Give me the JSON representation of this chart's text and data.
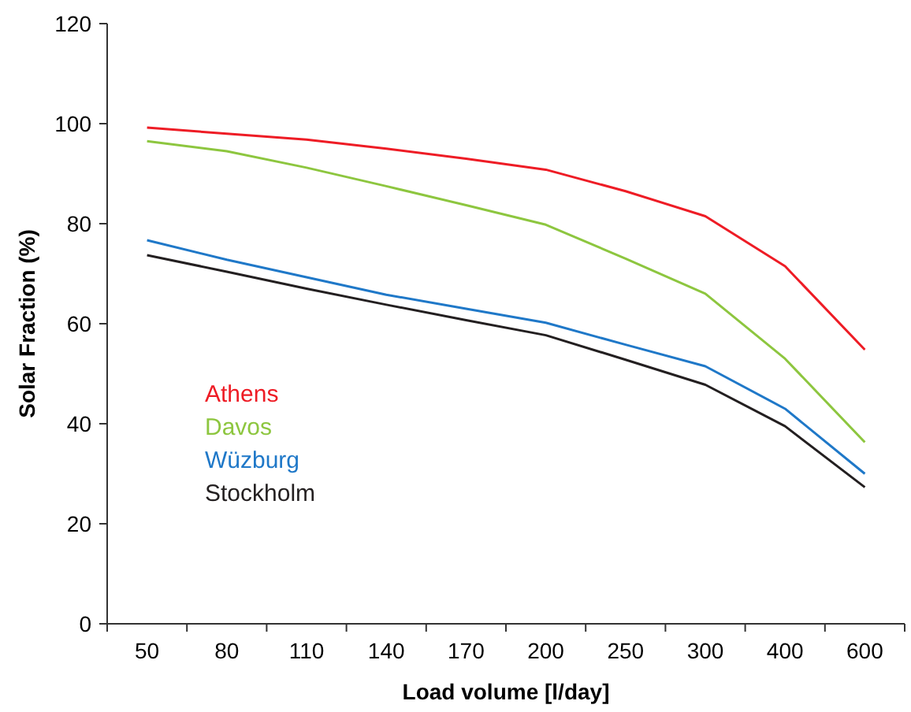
{
  "chart_data": {
    "type": "line",
    "xlabel": "Load volume [l/day]",
    "ylabel": "Solar Fraction (%)",
    "categories": [
      "50",
      "80",
      "110",
      "140",
      "170",
      "200",
      "250",
      "300",
      "400",
      "600"
    ],
    "series": [
      {
        "name": "Athens",
        "color": "#ee1c25",
        "values": [
          99.2,
          98,
          96.8,
          95,
          93,
          90.8,
          86.5,
          81.5,
          71.5,
          54.8
        ]
      },
      {
        "name": "Davos",
        "color": "#8dc63f",
        "values": [
          96.5,
          94.5,
          91.2,
          87.5,
          83.7,
          79.8,
          73,
          66,
          53,
          36.3
        ]
      },
      {
        "name": "Wüzburg",
        "color": "#1f78c8",
        "values": [
          76.7,
          72.8,
          69.3,
          65.8,
          63,
          60.2,
          55.8,
          51.5,
          43,
          30
        ]
      },
      {
        "name": "Stockholm",
        "color": "#231f20",
        "values": [
          73.7,
          70.4,
          67,
          63.8,
          60.7,
          57.7,
          52.8,
          47.8,
          39.5,
          27.3
        ]
      }
    ],
    "ylim": [
      0,
      120
    ],
    "yticks": [
      0,
      20,
      40,
      60,
      80,
      100,
      120
    ],
    "grid": false,
    "legend": "left",
    "marker": "none",
    "line_style": "solid"
  }
}
